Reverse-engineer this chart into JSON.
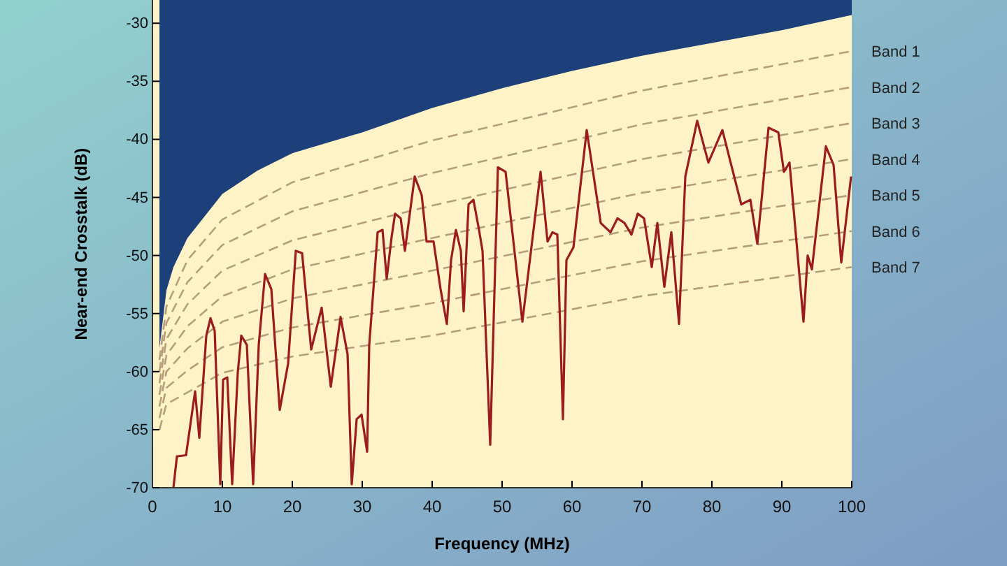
{
  "chart_data": {
    "type": "line",
    "xlabel": "Frequency (MHz)",
    "ylabel": "Near-end Crosstalk (dB)",
    "xlim": [
      0,
      100
    ],
    "ylim": [
      -70,
      -28
    ],
    "xticks": [
      0,
      10,
      20,
      30,
      40,
      50,
      60,
      70,
      80,
      90,
      100
    ],
    "yticks": [
      -70,
      -65,
      -60,
      -55,
      -50,
      -45,
      -40,
      -35,
      -30
    ],
    "grid": false,
    "series": [
      {
        "type": "area",
        "color": "#1d3f7a",
        "x": [
          1,
          2,
          3,
          5,
          10,
          15,
          20,
          30,
          40,
          50,
          60,
          70,
          80,
          90,
          100
        ],
        "values": [
          -58,
          -53,
          -51,
          -48.5,
          -44.7,
          -42.7,
          -41.2,
          -39.4,
          -37.3,
          -35.6,
          -34.1,
          -32.8,
          -31.7,
          -30.6,
          -29.3
        ]
      },
      {
        "name": "Band 1",
        "line_style": "dashed",
        "color": "#b59f7a",
        "x": [
          1,
          2,
          5,
          10,
          20,
          40,
          70,
          100
        ],
        "values": [
          -59,
          -54.4,
          -50.4,
          -46.9,
          -43.7,
          -40.1,
          -35.8,
          -32.4
        ]
      },
      {
        "name": "Band 2",
        "line_style": "dashed",
        "color": "#b59f7a",
        "x": [
          1,
          2,
          5,
          10,
          20,
          40,
          70,
          100
        ],
        "values": [
          -60,
          -55.8,
          -52.3,
          -49.1,
          -46.2,
          -42.9,
          -38.7,
          -35.5
        ]
      },
      {
        "name": "Band 3",
        "line_style": "dashed",
        "color": "#b59f7a",
        "x": [
          1,
          2,
          5,
          10,
          20,
          40,
          70,
          100
        ],
        "values": [
          -61,
          -57.2,
          -54.2,
          -51.3,
          -48.7,
          -45.7,
          -41.7,
          -38.6
        ]
      },
      {
        "name": "Band 4",
        "line_style": "dashed",
        "color": "#b59f7a",
        "x": [
          1,
          2,
          5,
          10,
          20,
          40,
          70,
          100
        ],
        "values": [
          -62,
          -58.6,
          -56.1,
          -53.5,
          -51.2,
          -48.5,
          -44.6,
          -41.7
        ]
      },
      {
        "name": "Band 5",
        "line_style": "dashed",
        "color": "#b59f7a",
        "x": [
          1,
          2,
          5,
          10,
          20,
          40,
          70,
          100
        ],
        "values": [
          -63,
          -60,
          -58,
          -55.7,
          -53.7,
          -51.3,
          -47.6,
          -44.8
        ]
      },
      {
        "name": "Band 6",
        "line_style": "dashed",
        "color": "#b59f7a",
        "x": [
          1,
          2,
          5,
          10,
          20,
          40,
          70,
          100
        ],
        "values": [
          -64,
          -61.4,
          -59.9,
          -57.9,
          -56.2,
          -54.1,
          -50.5,
          -47.9
        ]
      },
      {
        "name": "Band 7",
        "line_style": "dashed",
        "color": "#b59f7a",
        "x": [
          1,
          2,
          5,
          10,
          20,
          40,
          70,
          100
        ],
        "values": [
          -65,
          -62.8,
          -61.8,
          -60.1,
          -58.7,
          -56.9,
          -53.5,
          -51
        ]
      },
      {
        "line_style": "solid",
        "color": "#9b1c1c",
        "x": [
          3,
          3.5,
          4.8,
          6.1,
          6.7,
          7.7,
          8.3,
          8.9,
          9.7,
          10.1,
          10.7,
          11.4,
          12.2,
          12.7,
          13.5,
          14.4,
          15.2,
          16.1,
          17,
          18.2,
          19.4,
          20.5,
          21.4,
          22.7,
          24.2,
          25.5,
          26.9,
          27.9,
          28.5,
          29.2,
          29.9,
          30.7,
          31,
          31.5,
          32.2,
          32.9,
          33.5,
          34.2,
          34.7,
          35.5,
          36.1,
          37.5,
          38.5,
          39.2,
          40.2,
          41.2,
          42.1,
          42.7,
          43.4,
          44.1,
          44.5,
          45.2,
          45.9,
          46.7,
          47.2,
          48.3,
          49.4,
          50.5,
          52.9,
          55.5,
          56.5,
          57.2,
          57.9,
          58.7,
          59.2,
          60.2,
          62.1,
          64.1,
          65.5,
          66.5,
          67.5,
          68.5,
          69.4,
          70.3,
          71.4,
          72.2,
          73.2,
          74.2,
          75.3,
          76.2,
          77.9,
          79.5,
          81.5,
          84.2,
          85.5,
          86.5,
          88.1,
          89.5,
          90.3,
          91.1,
          93.1,
          93.7,
          94.3,
          96.3,
          97.4,
          98.5,
          99.9
        ],
        "values": [
          -70,
          -67.3,
          -67.2,
          -61.7,
          -65.7,
          -56.9,
          -55.4,
          -56.5,
          -69.7,
          -60.7,
          -60.5,
          -69.7,
          -60.1,
          -56.9,
          -57.7,
          -69.7,
          -57.7,
          -51.6,
          -52.9,
          -63.3,
          -59.3,
          -49.6,
          -49.8,
          -58.1,
          -54.5,
          -61.3,
          -55.3,
          -58.5,
          -69.7,
          -64.1,
          -63.7,
          -66.9,
          -57.7,
          -53.7,
          -48,
          -47.8,
          -52,
          -48.4,
          -46.4,
          -46.8,
          -49.6,
          -43.2,
          -44.8,
          -48.8,
          -48.8,
          -52.9,
          -55.9,
          -50.4,
          -47.8,
          -49.6,
          -54.8,
          -45.6,
          -45.2,
          -47.8,
          -49.6,
          -66.3,
          -42.4,
          -42.8,
          -55.7,
          -42.8,
          -48.8,
          -48,
          -48.2,
          -64.1,
          -50.4,
          -49.3,
          -39.2,
          -47.2,
          -48,
          -46.8,
          -47.2,
          -48.2,
          -46.4,
          -46.8,
          -51,
          -47.2,
          -52.7,
          -48,
          -55.9,
          -43.2,
          -38.4,
          -42,
          -39.2,
          -45.6,
          -45.2,
          -49,
          -39,
          -39.4,
          -42.8,
          -42,
          -55.7,
          -50,
          -51.2,
          -40.6,
          -42.2,
          -50.6,
          -43.2
        ]
      }
    ]
  }
}
